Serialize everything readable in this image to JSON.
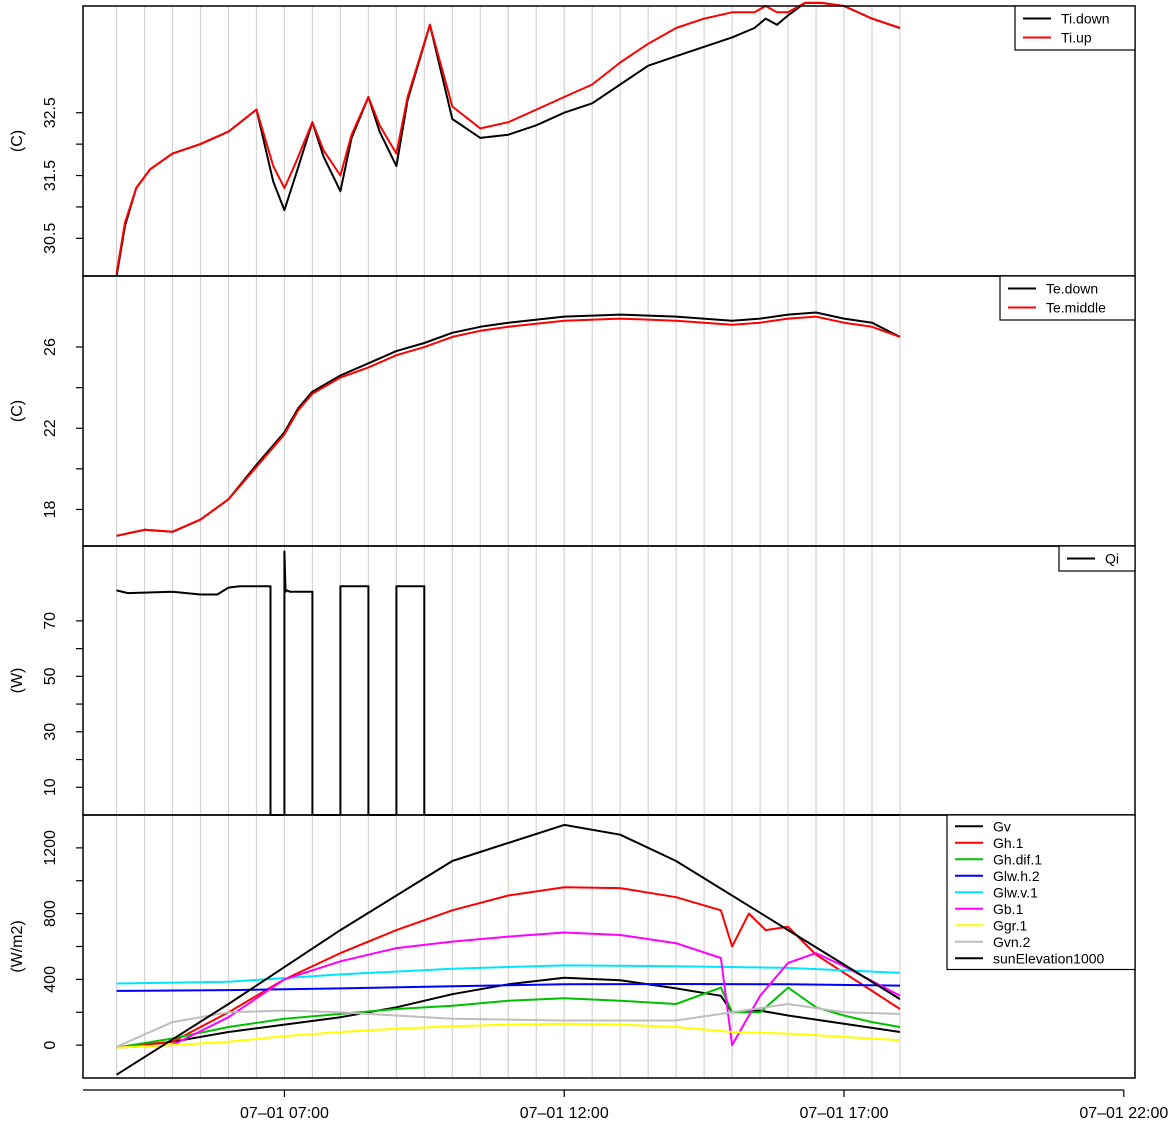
{
  "chart_data": [
    {
      "type": "line",
      "panel": "top",
      "ylabel": "(C)",
      "ylim": [
        29.9,
        34.2
      ],
      "yticks": [
        30.5,
        31.5,
        32.5
      ],
      "ytick_labels": [
        "30.5",
        "31.5",
        "32.5"
      ],
      "legend_position": "top-right",
      "series": [
        {
          "name": "Ti.down",
          "color": "#000000",
          "x": [
            4.0,
            4.15,
            4.35,
            4.6,
            5.0,
            5.5,
            6.0,
            6.5,
            6.8,
            7.0,
            7.2,
            7.5,
            7.7,
            8.0,
            8.2,
            8.5,
            8.7,
            9.0,
            9.2,
            9.6,
            10.0,
            10.5,
            11.0,
            11.5,
            12.0,
            12.5,
            13.0,
            13.5,
            14.0,
            14.5,
            15.0,
            15.4,
            15.6,
            15.8,
            16.0,
            16.3,
            16.6,
            17.0,
            17.5,
            18.0
          ],
          "y": [
            29.9,
            30.7,
            31.3,
            31.6,
            31.85,
            32.0,
            32.2,
            32.55,
            31.4,
            30.95,
            31.5,
            32.35,
            31.8,
            31.25,
            32.1,
            32.75,
            32.2,
            31.65,
            32.7,
            33.9,
            32.4,
            32.1,
            32.15,
            32.3,
            32.5,
            32.65,
            32.95,
            33.25,
            33.4,
            33.55,
            33.7,
            33.85,
            34.0,
            33.9,
            34.05,
            34.25,
            34.25,
            34.2,
            34.0,
            33.85
          ]
        },
        {
          "name": "Ti.up",
          "color": "#ff0000",
          "x": [
            4.0,
            4.15,
            4.35,
            4.6,
            5.0,
            5.5,
            6.0,
            6.5,
            6.8,
            7.0,
            7.2,
            7.5,
            7.7,
            8.0,
            8.2,
            8.5,
            8.7,
            9.0,
            9.2,
            9.6,
            10.0,
            10.5,
            11.0,
            11.5,
            12.0,
            12.5,
            13.0,
            13.5,
            14.0,
            14.5,
            15.0,
            15.4,
            15.6,
            15.8,
            16.0,
            16.3,
            16.6,
            17.0,
            17.5,
            18.0
          ],
          "y": [
            29.95,
            30.75,
            31.3,
            31.6,
            31.85,
            32.0,
            32.2,
            32.55,
            31.65,
            31.3,
            31.7,
            32.35,
            31.9,
            31.5,
            32.15,
            32.75,
            32.3,
            31.85,
            32.75,
            33.9,
            32.6,
            32.25,
            32.35,
            32.55,
            32.75,
            32.95,
            33.3,
            33.6,
            33.85,
            34.0,
            34.1,
            34.1,
            34.2,
            34.1,
            34.1,
            34.25,
            34.25,
            34.2,
            34.0,
            33.85
          ]
        }
      ]
    },
    {
      "type": "line",
      "panel": "second",
      "ylabel": "(C)",
      "ylim": [
        16.2,
        29.5
      ],
      "yticks": [
        18,
        22,
        26
      ],
      "ytick_labels": [
        "18",
        "22",
        "26"
      ],
      "legend_position": "top-right",
      "series": [
        {
          "name": "Te.down",
          "color": "#000000",
          "x": [
            4.0,
            4.5,
            5.0,
            5.5,
            6.0,
            6.5,
            7.0,
            7.25,
            7.5,
            8.0,
            8.5,
            9.0,
            9.5,
            10.0,
            10.5,
            11.0,
            12.0,
            13.0,
            14.0,
            15.0,
            15.5,
            16.0,
            16.5,
            17.0,
            17.5,
            18.0
          ],
          "y": [
            16.7,
            17.0,
            16.9,
            17.5,
            18.5,
            20.2,
            21.8,
            23.0,
            23.8,
            24.6,
            25.2,
            25.8,
            26.2,
            26.7,
            27.0,
            27.2,
            27.5,
            27.6,
            27.5,
            27.3,
            27.4,
            27.6,
            27.7,
            27.4,
            27.2,
            26.5
          ]
        },
        {
          "name": "Te.middle",
          "color": "#ff0000",
          "x": [
            4.0,
            4.5,
            5.0,
            5.5,
            6.0,
            6.5,
            7.0,
            7.25,
            7.5,
            8.0,
            8.5,
            9.0,
            9.5,
            10.0,
            10.5,
            11.0,
            12.0,
            13.0,
            14.0,
            15.0,
            15.5,
            16.0,
            16.5,
            17.0,
            17.5,
            18.0
          ],
          "y": [
            16.7,
            17.0,
            16.9,
            17.5,
            18.5,
            20.1,
            21.7,
            22.9,
            23.7,
            24.5,
            25.0,
            25.6,
            26.0,
            26.5,
            26.8,
            27.0,
            27.3,
            27.4,
            27.3,
            27.1,
            27.2,
            27.4,
            27.5,
            27.2,
            27.0,
            26.5
          ]
        }
      ]
    },
    {
      "type": "line",
      "panel": "third",
      "ylabel": "(W)",
      "ylim": [
        0,
        97
      ],
      "yticks": [
        10,
        30,
        50,
        70
      ],
      "ytick_labels": [
        "10",
        "30",
        "50",
        "70"
      ],
      "legend_position": "top-right",
      "series": [
        {
          "name": "Qi",
          "color": "#000000",
          "x": [
            4.0,
            4.2,
            5.0,
            5.5,
            5.8,
            6.0,
            6.2,
            6.5,
            6.75,
            6.75,
            7.0,
            7.0,
            7.02,
            7.05,
            7.1,
            7.5,
            7.5,
            8.0,
            8.0,
            8.5,
            8.5,
            9.0,
            9.0,
            9.5,
            9.5,
            18.0
          ],
          "y": [
            81,
            80,
            80.5,
            79.5,
            79.5,
            82,
            82.5,
            82.5,
            82.5,
            0,
            0,
            95,
            80.5,
            81,
            80.5,
            80.5,
            0,
            0,
            82.5,
            82.5,
            0,
            0,
            82.5,
            82.5,
            0,
            0
          ]
        }
      ]
    },
    {
      "type": "line",
      "panel": "bottom",
      "ylabel": "(W/m2)",
      "ylim": [
        -200,
        1400
      ],
      "yticks": [
        0,
        400,
        800,
        1200
      ],
      "ytick_labels": [
        "0",
        "400",
        "800",
        "1200"
      ],
      "xlim": [
        3.4,
        22.2
      ],
      "xticks": [
        7,
        12,
        17,
        22
      ],
      "xtick_labels": [
        "07–01 07:00",
        "07–01 12:00",
        "07–01 17:00",
        "07–01 22:00"
      ],
      "legend_position": "top-right",
      "series": [
        {
          "name": "Gv",
          "color": "#000000",
          "x": [
            4.0,
            5.0,
            6.0,
            7.0,
            8.0,
            9.0,
            10.0,
            11.0,
            12.0,
            13.0,
            14.0,
            14.8,
            15.0,
            15.5,
            16.0,
            17.0,
            18.0
          ],
          "y": [
            -15,
            20,
            80,
            125,
            170,
            230,
            310,
            370,
            410,
            395,
            345,
            300,
            200,
            210,
            180,
            130,
            80
          ]
        },
        {
          "name": "Gh.1",
          "color": "#ff0000",
          "x": [
            4.0,
            5.0,
            6.0,
            7.0,
            8.0,
            9.0,
            10.0,
            11.0,
            12.0,
            13.0,
            14.0,
            14.8,
            15.0,
            15.3,
            15.6,
            16.0,
            16.5,
            17.0,
            17.5,
            18.0
          ],
          "y": [
            -15,
            20,
            200,
            400,
            560,
            700,
            820,
            910,
            960,
            955,
            900,
            820,
            600,
            800,
            700,
            720,
            550,
            440,
            330,
            220
          ]
        },
        {
          "name": "Gh.dif.1",
          "color": "#00c000",
          "x": [
            4.0,
            5.0,
            6.0,
            7.0,
            8.0,
            9.0,
            10.0,
            11.0,
            12.0,
            13.0,
            14.0,
            14.8,
            15.0,
            15.5,
            16.0,
            16.5,
            17.0,
            17.5,
            18.0
          ],
          "y": [
            -15,
            40,
            110,
            160,
            190,
            220,
            240,
            270,
            285,
            270,
            250,
            350,
            200,
            200,
            350,
            230,
            180,
            140,
            110
          ]
        },
        {
          "name": "Glw.h.2",
          "color": "#0000ff",
          "x": [
            4.0,
            6.0,
            8.0,
            10.0,
            12.0,
            14.0,
            16.0,
            18.0
          ],
          "y": [
            330,
            335,
            345,
            358,
            370,
            372,
            370,
            362
          ]
        },
        {
          "name": "Glw.v.1",
          "color": "#00e5ff",
          "x": [
            4.0,
            6.0,
            8.0,
            10.0,
            12.0,
            14.0,
            16.0,
            18.0
          ],
          "y": [
            375,
            385,
            430,
            465,
            485,
            480,
            470,
            440
          ]
        },
        {
          "name": "Gb.1",
          "color": "#ff00ff",
          "x": [
            4.0,
            5.0,
            6.0,
            7.0,
            8.0,
            9.0,
            10.0,
            11.0,
            12.0,
            13.0,
            14.0,
            14.8,
            15.0,
            15.5,
            16.0,
            16.5,
            17.0,
            18.0
          ],
          "y": [
            -15,
            0,
            170,
            400,
            510,
            590,
            630,
            660,
            685,
            670,
            620,
            530,
            0,
            300,
            500,
            560,
            480,
            300
          ]
        },
        {
          "name": "Ggr.1",
          "color": "#ffff00",
          "x": [
            4.0,
            5.0,
            6.0,
            7.0,
            8.0,
            9.0,
            10.0,
            11.0,
            12.0,
            13.0,
            14.0,
            15.0,
            16.0,
            17.0,
            18.0
          ],
          "y": [
            -15,
            0,
            20,
            55,
            80,
            100,
            115,
            125,
            130,
            125,
            110,
            80,
            70,
            50,
            30
          ]
        },
        {
          "name": "Gvn.2",
          "color": "#bebebe",
          "x": [
            4.0,
            5.0,
            6.0,
            7.0,
            8.0,
            10.0,
            12.0,
            14.0,
            15.0,
            16.0,
            17.0,
            18.0
          ],
          "y": [
            -10,
            140,
            200,
            210,
            200,
            160,
            150,
            150,
            200,
            250,
            200,
            190
          ]
        },
        {
          "name": "sunElevation1000",
          "color": "#000000",
          "x": [
            4.0,
            6.0,
            8.0,
            10.0,
            12.0,
            13.0,
            14.0,
            16.0,
            18.0
          ],
          "y": [
            -180,
            250,
            700,
            1120,
            1340,
            1280,
            1120,
            700,
            280
          ]
        }
      ]
    }
  ]
}
